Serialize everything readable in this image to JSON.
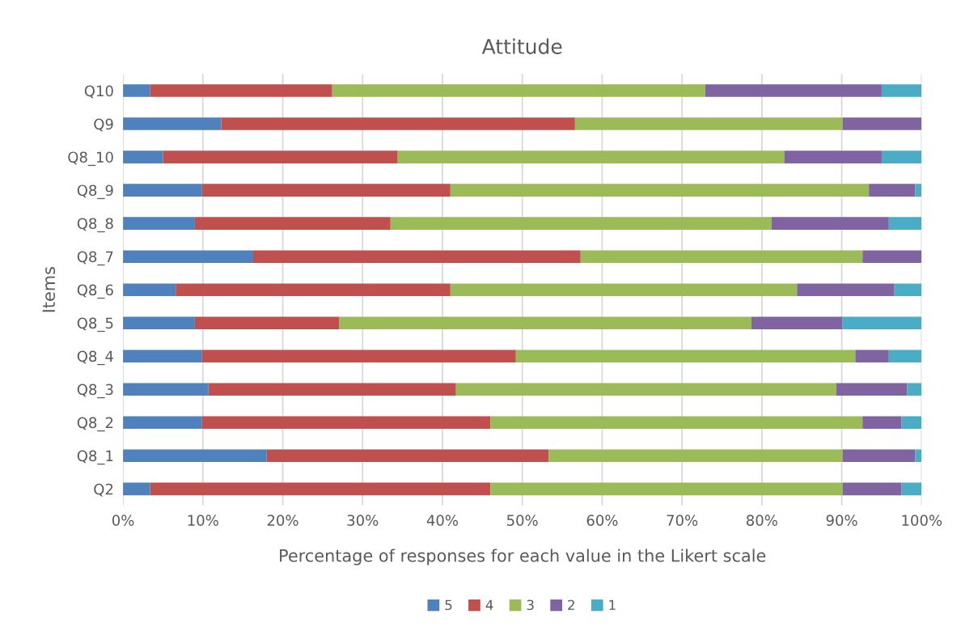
{
  "chart_data": {
    "type": "bar",
    "orientation": "horizontal",
    "stacked": true,
    "title": "Attitude",
    "xlabel": "Percentage of responses for each value in the Likert scale",
    "ylabel": "Items",
    "categories": [
      "Q10",
      "Q9",
      "Q8_10",
      "Q8_9",
      "Q8_8",
      "Q8_7",
      "Q8_6",
      "Q8_5",
      "Q8_4",
      "Q8_3",
      "Q8_2",
      "Q8_1",
      "Q2"
    ],
    "series": [
      {
        "name": "5",
        "color": "#4f81bd",
        "values": [
          3.4,
          12.3,
          5.0,
          9.9,
          9.0,
          16.3,
          6.6,
          9.0,
          9.9,
          10.7,
          9.9,
          18.0,
          3.4
        ]
      },
      {
        "name": "4",
        "color": "#c0504d",
        "values": [
          22.8,
          44.3,
          29.4,
          31.1,
          24.5,
          41.0,
          34.4,
          18.1,
          39.3,
          31.0,
          36.1,
          35.3,
          42.6
        ]
      },
      {
        "name": "3",
        "color": "#9bbb59",
        "values": [
          46.7,
          33.5,
          48.4,
          52.4,
          47.7,
          35.3,
          43.4,
          51.6,
          42.5,
          47.6,
          46.6,
          36.8,
          44.1
        ]
      },
      {
        "name": "2",
        "color": "#8064a2",
        "values": [
          22.1,
          9.9,
          12.2,
          5.8,
          14.7,
          7.4,
          12.2,
          11.4,
          4.2,
          8.9,
          4.9,
          9.1,
          7.4
        ]
      },
      {
        "name": "1",
        "color": "#4bacc6",
        "values": [
          5.0,
          0,
          5.0,
          0.8,
          4.1,
          0,
          3.4,
          9.9,
          4.1,
          1.8,
          2.5,
          0.8,
          2.5
        ]
      }
    ],
    "xlim": [
      0,
      100
    ],
    "xticks": [
      {
        "value": 0,
        "label": "0%"
      },
      {
        "value": 10,
        "label": "10%"
      },
      {
        "value": 20,
        "label": "20%"
      },
      {
        "value": 30,
        "label": "30%"
      },
      {
        "value": 40,
        "label": "40%"
      },
      {
        "value": 50,
        "label": "50%"
      },
      {
        "value": 60,
        "label": "60%"
      },
      {
        "value": 70,
        "label": "70%"
      },
      {
        "value": 80,
        "label": "80%"
      },
      {
        "value": 90,
        "label": "90%"
      },
      {
        "value": 100,
        "label": "100%"
      }
    ],
    "grid": "x",
    "legend": "bottom"
  }
}
